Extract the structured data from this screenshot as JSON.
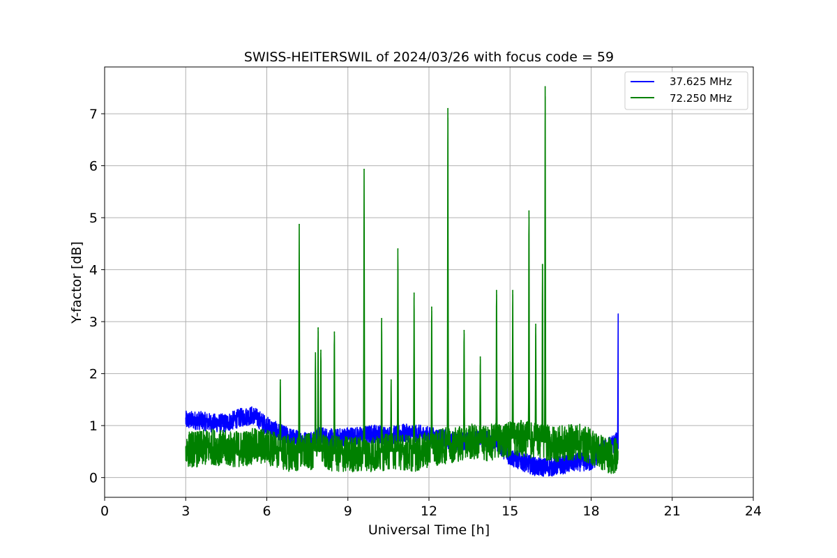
{
  "chart_data": {
    "type": "line",
    "title": "SWISS-HEITERSWIL of 2024/03/26 with focus code = 59",
    "xlabel": "Universal Time [h]",
    "ylabel": "Y-factor [dB]",
    "xlim": [
      0,
      24
    ],
    "ylim": [
      -0.38,
      7.9
    ],
    "xticks": [
      0,
      3,
      6,
      9,
      12,
      15,
      18,
      21,
      24
    ],
    "yticks": [
      0,
      1,
      2,
      3,
      4,
      5,
      6,
      7
    ],
    "xtick_labels": [
      "0",
      "3",
      "6",
      "9",
      "12",
      "15",
      "18",
      "21",
      "24"
    ],
    "ytick_labels": [
      "0",
      "1",
      "2",
      "3",
      "4",
      "5",
      "6",
      "7"
    ],
    "grid": true,
    "legend_position": "top-right",
    "series": [
      {
        "name": "37.625 MHz",
        "color": "#0000ff",
        "x": [
          3.0,
          3.5,
          4.0,
          4.5,
          5.0,
          5.5,
          6.0,
          6.5,
          7.0,
          7.5,
          8.0,
          8.5,
          9.0,
          9.5,
          10.0,
          10.5,
          11.0,
          11.5,
          12.0,
          12.5,
          13.0,
          13.5,
          14.0,
          14.5,
          15.0,
          15.5,
          16.0,
          16.5,
          17.0,
          17.5,
          18.0,
          18.5,
          18.98,
          19.0
        ],
        "values": [
          1.1,
          1.1,
          1.05,
          1.05,
          1.15,
          1.2,
          1.0,
          0.85,
          0.75,
          0.7,
          0.8,
          0.75,
          0.8,
          0.8,
          0.85,
          0.8,
          0.85,
          0.85,
          0.8,
          0.75,
          0.7,
          0.7,
          0.75,
          0.7,
          0.4,
          0.3,
          0.2,
          0.2,
          0.25,
          0.3,
          0.3,
          0.55,
          0.7,
          3.15
        ],
        "noise": 0.18
      },
      {
        "name": "72.250 MHz",
        "color": "#008000",
        "x": [
          3.0,
          3.5,
          4.0,
          4.5,
          5.0,
          5.5,
          6.0,
          6.5,
          7.0,
          7.5,
          8.0,
          8.5,
          9.0,
          9.5,
          10.0,
          10.5,
          11.0,
          11.5,
          12.0,
          12.5,
          13.0,
          13.5,
          14.0,
          14.5,
          15.0,
          15.5,
          16.0,
          16.5,
          17.0,
          17.5,
          18.0,
          18.5,
          19.0
        ],
        "values": [
          0.55,
          0.55,
          0.6,
          0.55,
          0.55,
          0.6,
          0.6,
          0.5,
          0.45,
          0.5,
          0.5,
          0.45,
          0.45,
          0.45,
          0.45,
          0.5,
          0.5,
          0.45,
          0.55,
          0.6,
          0.65,
          0.7,
          0.65,
          0.7,
          0.75,
          0.75,
          0.7,
          0.65,
          0.65,
          0.7,
          0.6,
          0.45,
          0.4
        ],
        "noise": 0.35,
        "peaks": [
          {
            "x": 6.5,
            "y": 1.88
          },
          {
            "x": 7.2,
            "y": 4.87
          },
          {
            "x": 7.8,
            "y": 2.4
          },
          {
            "x": 7.9,
            "y": 2.88
          },
          {
            "x": 8.0,
            "y": 2.45
          },
          {
            "x": 8.5,
            "y": 2.8
          },
          {
            "x": 9.6,
            "y": 5.93
          },
          {
            "x": 10.25,
            "y": 3.06
          },
          {
            "x": 10.6,
            "y": 1.88
          },
          {
            "x": 10.85,
            "y": 4.4
          },
          {
            "x": 11.45,
            "y": 3.55
          },
          {
            "x": 12.1,
            "y": 3.28
          },
          {
            "x": 12.7,
            "y": 7.1
          },
          {
            "x": 13.3,
            "y": 2.83
          },
          {
            "x": 13.9,
            "y": 2.32
          },
          {
            "x": 14.5,
            "y": 3.6
          },
          {
            "x": 15.1,
            "y": 3.6
          },
          {
            "x": 15.7,
            "y": 5.13
          },
          {
            "x": 15.95,
            "y": 2.95
          },
          {
            "x": 16.3,
            "y": 7.52
          },
          {
            "x": 16.2,
            "y": 4.1
          }
        ]
      }
    ]
  }
}
